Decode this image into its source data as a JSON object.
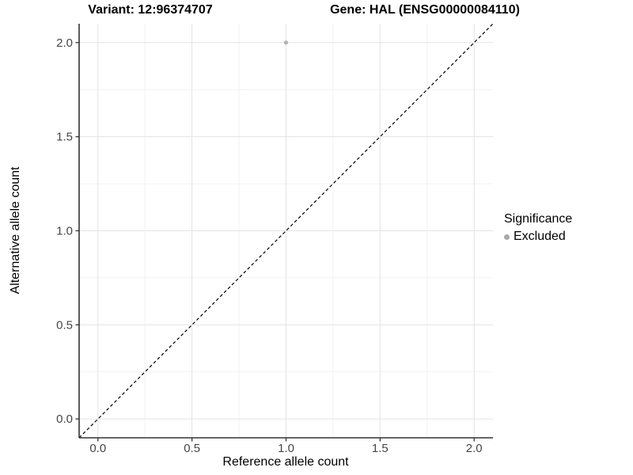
{
  "chart_data": {
    "type": "scatter",
    "titles": {
      "left": "Variant: 12:96374707",
      "right": "Gene: HAL (ENSG00000084110)"
    },
    "xlabel": "Reference allele count",
    "ylabel": "Alternative allele count",
    "xlim": [
      -0.1,
      2.1
    ],
    "ylim": [
      -0.1,
      2.1
    ],
    "x_ticks": [
      0.0,
      0.5,
      1.0,
      1.5,
      2.0
    ],
    "x_tick_labels": [
      "0.0",
      "0.5",
      "1.0",
      "1.5",
      "2.0"
    ],
    "y_ticks": [
      0.0,
      0.5,
      1.0,
      1.5,
      2.0
    ],
    "y_tick_labels": [
      "0.0",
      "0.5",
      "1.0",
      "1.5",
      "2.0"
    ],
    "x_minor_ticks": [
      0.25,
      0.75,
      1.25,
      1.75
    ],
    "y_minor_ticks": [
      0.25,
      0.75,
      1.25,
      1.75
    ],
    "grid": "major+minor",
    "series": [
      {
        "name": "Excluded",
        "color": "#b3b3b3",
        "marker": "circle",
        "points": [
          {
            "x": 1.0,
            "y": 2.0
          }
        ]
      }
    ],
    "reference_line": {
      "type": "identity",
      "slope": 1,
      "intercept": 0,
      "style": "dashed",
      "color": "#000000"
    },
    "legend": {
      "title": "Significance",
      "position": "right",
      "items": [
        {
          "label": "Excluded",
          "color": "#a9a9a9",
          "marker": "circle"
        }
      ]
    },
    "style_colors": {
      "axis_line": "#333333",
      "tick_label": "#444444",
      "grid_major": "#e3e3e3",
      "grid_minor": "#f1f1f1"
    }
  }
}
